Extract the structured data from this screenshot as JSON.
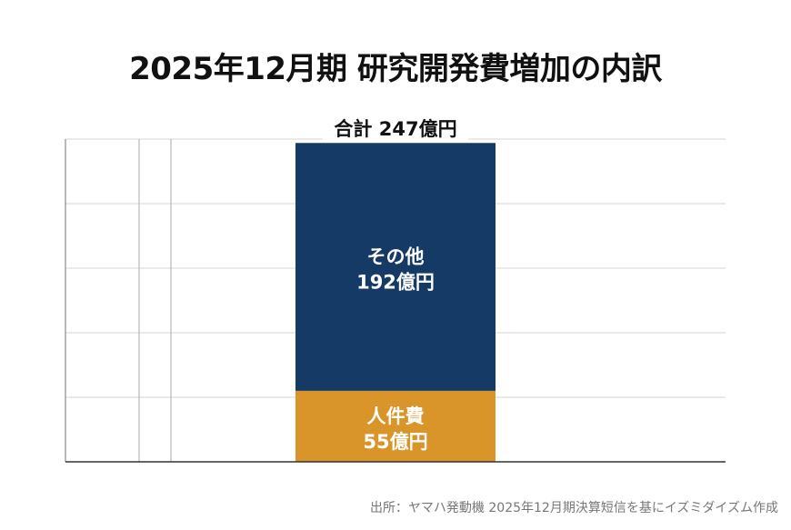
{
  "title": "2025年12月期 研究開発費増加の内訳",
  "source": "出所：ヤマハ発動機 2025年12月期決算短信を基にイズミダイズム作成",
  "chart_data": {
    "type": "bar",
    "stacked": true,
    "title": "2025年12月期 研究開発費増加の内訳",
    "categories": [
      ""
    ],
    "series": [
      {
        "name": "人件費",
        "values": [
          55
        ],
        "label": "55億円",
        "color": "#D9952A"
      },
      {
        "name": "その他",
        "values": [
          192
        ],
        "label": "192億円",
        "color": "#153A66"
      }
    ],
    "total_label": "合計 247億円",
    "ylim": [
      0,
      250
    ],
    "grid": true,
    "grid_step": 50,
    "legend": "none"
  }
}
